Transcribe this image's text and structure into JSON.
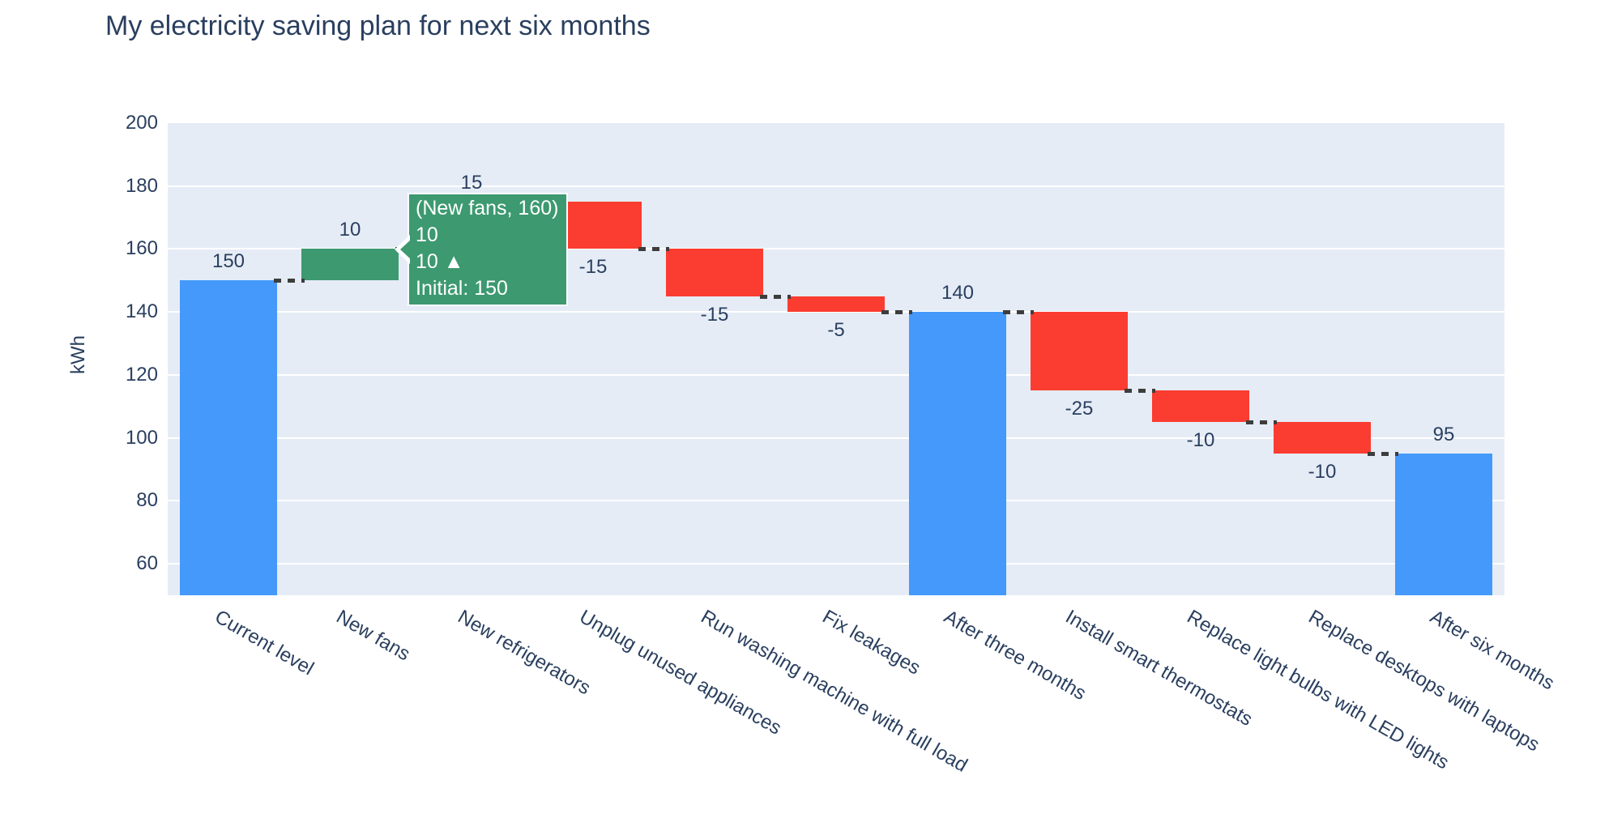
{
  "title": "My electricity saving plan for next six months",
  "y_axis": {
    "title": "kWh",
    "ticks": [
      200,
      180,
      160,
      140,
      120,
      100,
      80,
      60
    ]
  },
  "tooltip": {
    "target": "New fans",
    "lines": [
      "(New fans, 160)",
      "10",
      "10 ▲",
      "Initial: 150"
    ]
  },
  "colors": {
    "increasing": "#3D9970",
    "decreasing": "#FB3C30",
    "total": "#4499FA",
    "connector": "#3d3d3d",
    "plot_bg": "#E5ECF6",
    "grid": "#FFFFFF",
    "text": "#2a3f5f",
    "tooltip_bg": "#3D9970",
    "tooltip_text": "#FFFFFF"
  },
  "chart_data": {
    "type": "waterfall",
    "title": "My electricity saving plan for next six months",
    "ylabel": "kWh",
    "ylim": [
      50,
      200
    ],
    "grid": true,
    "legend": false,
    "categories": [
      "Current level",
      "New fans",
      "New refrigerators",
      "Unplug unused appliances",
      "Run washing machine with full load",
      "Fix leakages",
      "After three months",
      "Install smart thermostats",
      "Replace light bulbs with LED lights",
      "Replace desktops with laptops",
      "After six months"
    ],
    "steps": [
      {
        "label": "Current level",
        "measure": "absolute",
        "value": 150,
        "cumulative": 150,
        "text": "150"
      },
      {
        "label": "New fans",
        "measure": "relative",
        "value": 10,
        "cumulative": 160,
        "text": "10"
      },
      {
        "label": "New refrigerators",
        "measure": "relative",
        "value": 15,
        "cumulative": 175,
        "text": "15"
      },
      {
        "label": "Unplug unused appliances",
        "measure": "relative",
        "value": -15,
        "cumulative": 160,
        "text": "-15"
      },
      {
        "label": "Run washing machine with full load",
        "measure": "relative",
        "value": -15,
        "cumulative": 145,
        "text": "-15"
      },
      {
        "label": "Fix leakages",
        "measure": "relative",
        "value": -5,
        "cumulative": 140,
        "text": "-5"
      },
      {
        "label": "After three months",
        "measure": "total",
        "value": 140,
        "cumulative": 140,
        "text": "140"
      },
      {
        "label": "Install smart thermostats",
        "measure": "relative",
        "value": -25,
        "cumulative": 115,
        "text": "-25"
      },
      {
        "label": "Replace light bulbs with LED lights",
        "measure": "relative",
        "value": -10,
        "cumulative": 105,
        "text": "-10"
      },
      {
        "label": "Replace desktops with laptops",
        "measure": "relative",
        "value": -10,
        "cumulative": 95,
        "text": "-10"
      },
      {
        "label": "After six months",
        "measure": "total",
        "value": 95,
        "cumulative": 95,
        "text": "95"
      }
    ]
  }
}
